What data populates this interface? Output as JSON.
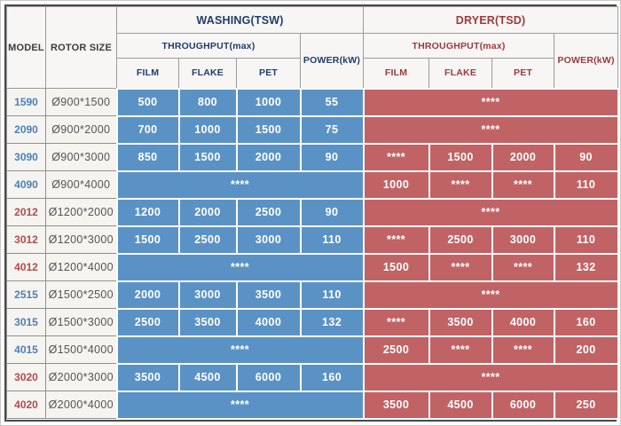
{
  "colors": {
    "washing_cell_bg": "#5b92c5",
    "dryer_cell_bg": "#c16365",
    "washing_header_text": "#1f3d6d",
    "dryer_header_text": "#9c3a3e",
    "model_blue": "#4e7fb5",
    "model_red": "#b34a4d",
    "cell_text": "#ffffff"
  },
  "table": {
    "headers": {
      "model": "MODEL",
      "rotor_size": "ROTOR SIZE",
      "washing_group": "WASHING(TSW)",
      "dryer_group": "DRYER(TSD)",
      "throughput": "THROUGHPUT(max)",
      "power": "POWER(kW)",
      "film": "FILM",
      "flake": "FLAKE",
      "pet": "PET"
    },
    "placeholder": "****",
    "rows": [
      {
        "model": "1590",
        "model_color": "blue",
        "rotor": "Ø900*1500",
        "washing": [
          "500",
          "800",
          "1000",
          "55"
        ],
        "dryer": "merged"
      },
      {
        "model": "2090",
        "model_color": "blue",
        "rotor": "Ø900*2000",
        "washing": [
          "700",
          "1000",
          "1500",
          "75"
        ],
        "dryer": "merged"
      },
      {
        "model": "3090",
        "model_color": "blue",
        "rotor": "Ø900*3000",
        "washing": [
          "850",
          "1500",
          "2000",
          "90"
        ],
        "dryer": [
          "****",
          "1500",
          "2000",
          "90"
        ]
      },
      {
        "model": "4090",
        "model_color": "blue",
        "rotor": "Ø900*4000",
        "washing": "merged",
        "dryer": [
          "1000",
          "****",
          "****",
          "110"
        ]
      },
      {
        "model": "2012",
        "model_color": "red",
        "rotor": "Ø1200*2000",
        "washing": [
          "1200",
          "2000",
          "2500",
          "90"
        ],
        "dryer": "merged"
      },
      {
        "model": "3012",
        "model_color": "red",
        "rotor": "Ø1200*3000",
        "washing": [
          "1500",
          "2500",
          "3000",
          "110"
        ],
        "dryer": [
          "****",
          "2500",
          "3000",
          "110"
        ]
      },
      {
        "model": "4012",
        "model_color": "red",
        "rotor": "Ø1200*4000",
        "washing": "merged",
        "dryer": [
          "1500",
          "****",
          "****",
          "132"
        ]
      },
      {
        "model": "2515",
        "model_color": "blue",
        "rotor": "Ø1500*2500",
        "washing": [
          "2000",
          "3000",
          "3500",
          "110"
        ],
        "dryer": "merged"
      },
      {
        "model": "3015",
        "model_color": "blue",
        "rotor": "Ø1500*3000",
        "washing": [
          "2500",
          "3500",
          "4000",
          "132"
        ],
        "dryer": [
          "****",
          "3500",
          "4000",
          "160"
        ]
      },
      {
        "model": "4015",
        "model_color": "blue",
        "rotor": "Ø1500*4000",
        "washing": "merged",
        "dryer": [
          "2500",
          "****",
          "****",
          "200"
        ]
      },
      {
        "model": "3020",
        "model_color": "red",
        "rotor": "Ø2000*3000",
        "washing": [
          "3500",
          "4500",
          "6000",
          "160"
        ],
        "dryer": "merged"
      },
      {
        "model": "4020",
        "model_color": "red",
        "rotor": "Ø2000*4000",
        "washing": "merged",
        "dryer": [
          "3500",
          "4500",
          "6000",
          "250"
        ]
      }
    ]
  }
}
